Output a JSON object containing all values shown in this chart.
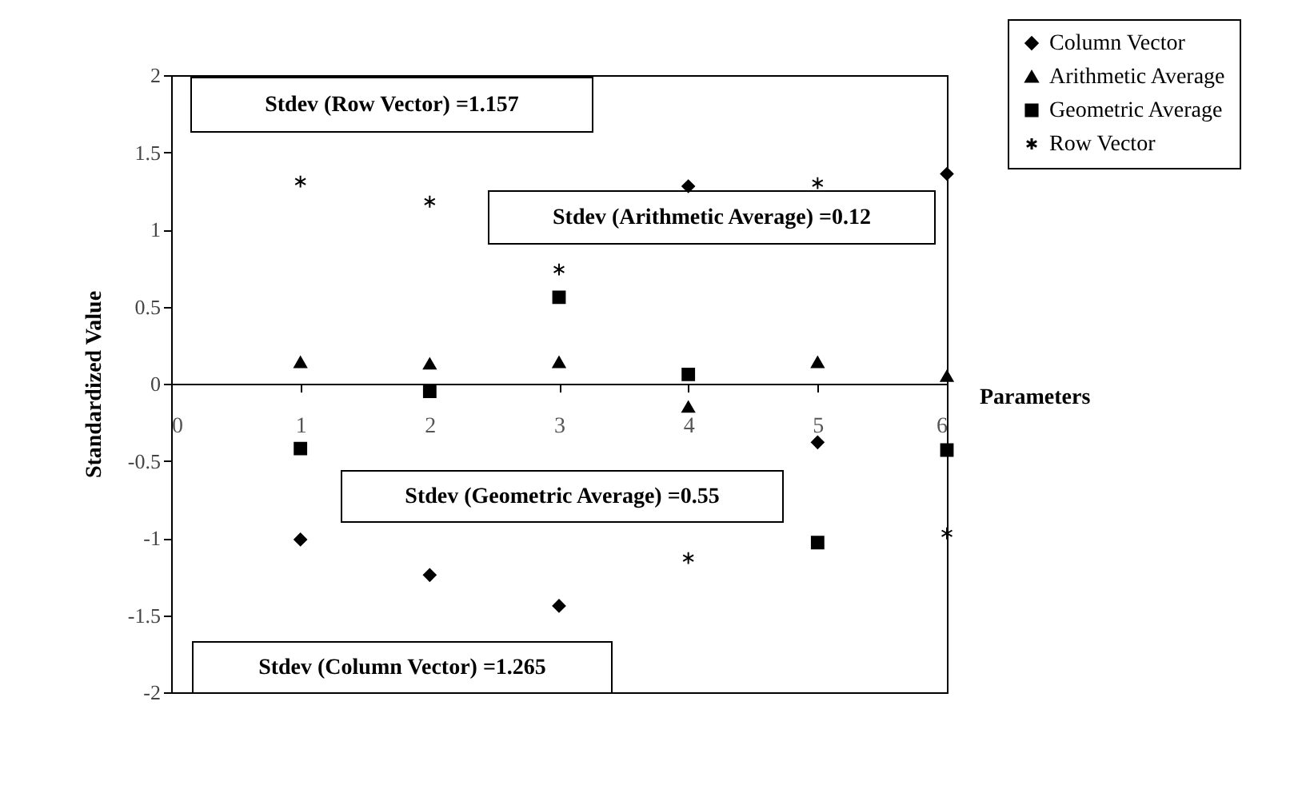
{
  "chart_data": {
    "type": "scatter",
    "xlabel": "Parameters",
    "ylabel": "Standardized Value",
    "x": [
      1,
      2,
      3,
      4,
      5,
      6
    ],
    "series": [
      {
        "name": "Column Vector",
        "color": "#000000",
        "marker": "diamond",
        "values": [
          -1.01,
          -1.24,
          -1.44,
          1.28,
          -0.38,
          1.36
        ]
      },
      {
        "name": "Arithmetic Average",
        "color": "#000000",
        "marker": "triangle",
        "values": [
          0.14,
          0.13,
          0.14,
          -0.15,
          0.14,
          0.05
        ]
      },
      {
        "name": "Geometric Average",
        "color": "#000000",
        "marker": "square",
        "values": [
          -0.42,
          -0.05,
          0.56,
          0.06,
          -1.03,
          -0.43
        ]
      },
      {
        "name": "Row Vector",
        "color": "#000000",
        "marker": "cross",
        "values": [
          1.31,
          1.18,
          0.74,
          -1.13,
          1.3,
          -0.97
        ]
      }
    ],
    "annotations": [
      "Stdev (Row Vector) =1.157",
      "Stdev (Arithmetic Average) =0.12",
      "Stdev (Geometric Average) =0.55",
      "Stdev (Column Vector) =1.265"
    ],
    "xlim": [
      0,
      6
    ],
    "xticks": [
      0,
      1,
      2,
      3,
      4,
      5,
      6
    ],
    "ylim": [
      -2,
      2
    ],
    "yticks": [
      -2,
      -1.5,
      -1,
      -0.5,
      0,
      0.5,
      1,
      1.5,
      2
    ],
    "grid": false,
    "legend": "top right"
  }
}
